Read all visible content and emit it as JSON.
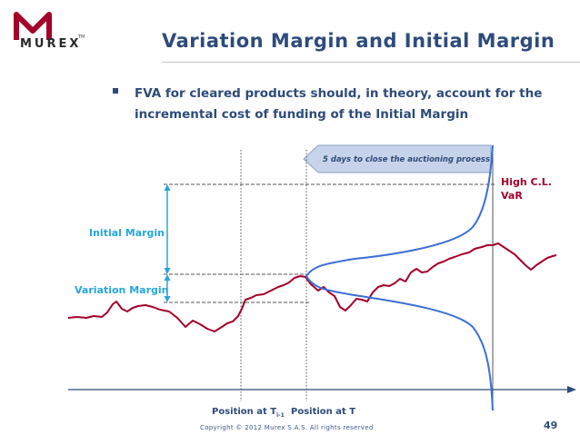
{
  "slide": {
    "title": "Variation Margin and Initial Margin",
    "bullet": "FVA for cleared products should, in theory, account for the incremental cost of funding of the Initial Margin",
    "logo": "MUREX",
    "logo_mark": "TM",
    "copyright": "Copyright © 2012 Murex S.A.S. All rights reserved",
    "page_number": "49"
  },
  "diagram": {
    "arrow_label": "5 days to close the auctioning process",
    "initial_margin_label": "Initial Margin",
    "variation_margin_label": "Variation Margin",
    "high_cl_line1": "High C.L.",
    "high_cl_line2": "VaR",
    "position_t1_label": "Position at T",
    "position_t1_sub": "i-1",
    "position_t_label": "Position at T"
  },
  "colors": {
    "title": "#2e4b7b",
    "accent_blue": "#26a6dc",
    "price_path": "#a5002a",
    "distribution": "#3a6fd8",
    "axis": "#2e4b7b",
    "arrow_fill": "#c7d3ea"
  }
}
